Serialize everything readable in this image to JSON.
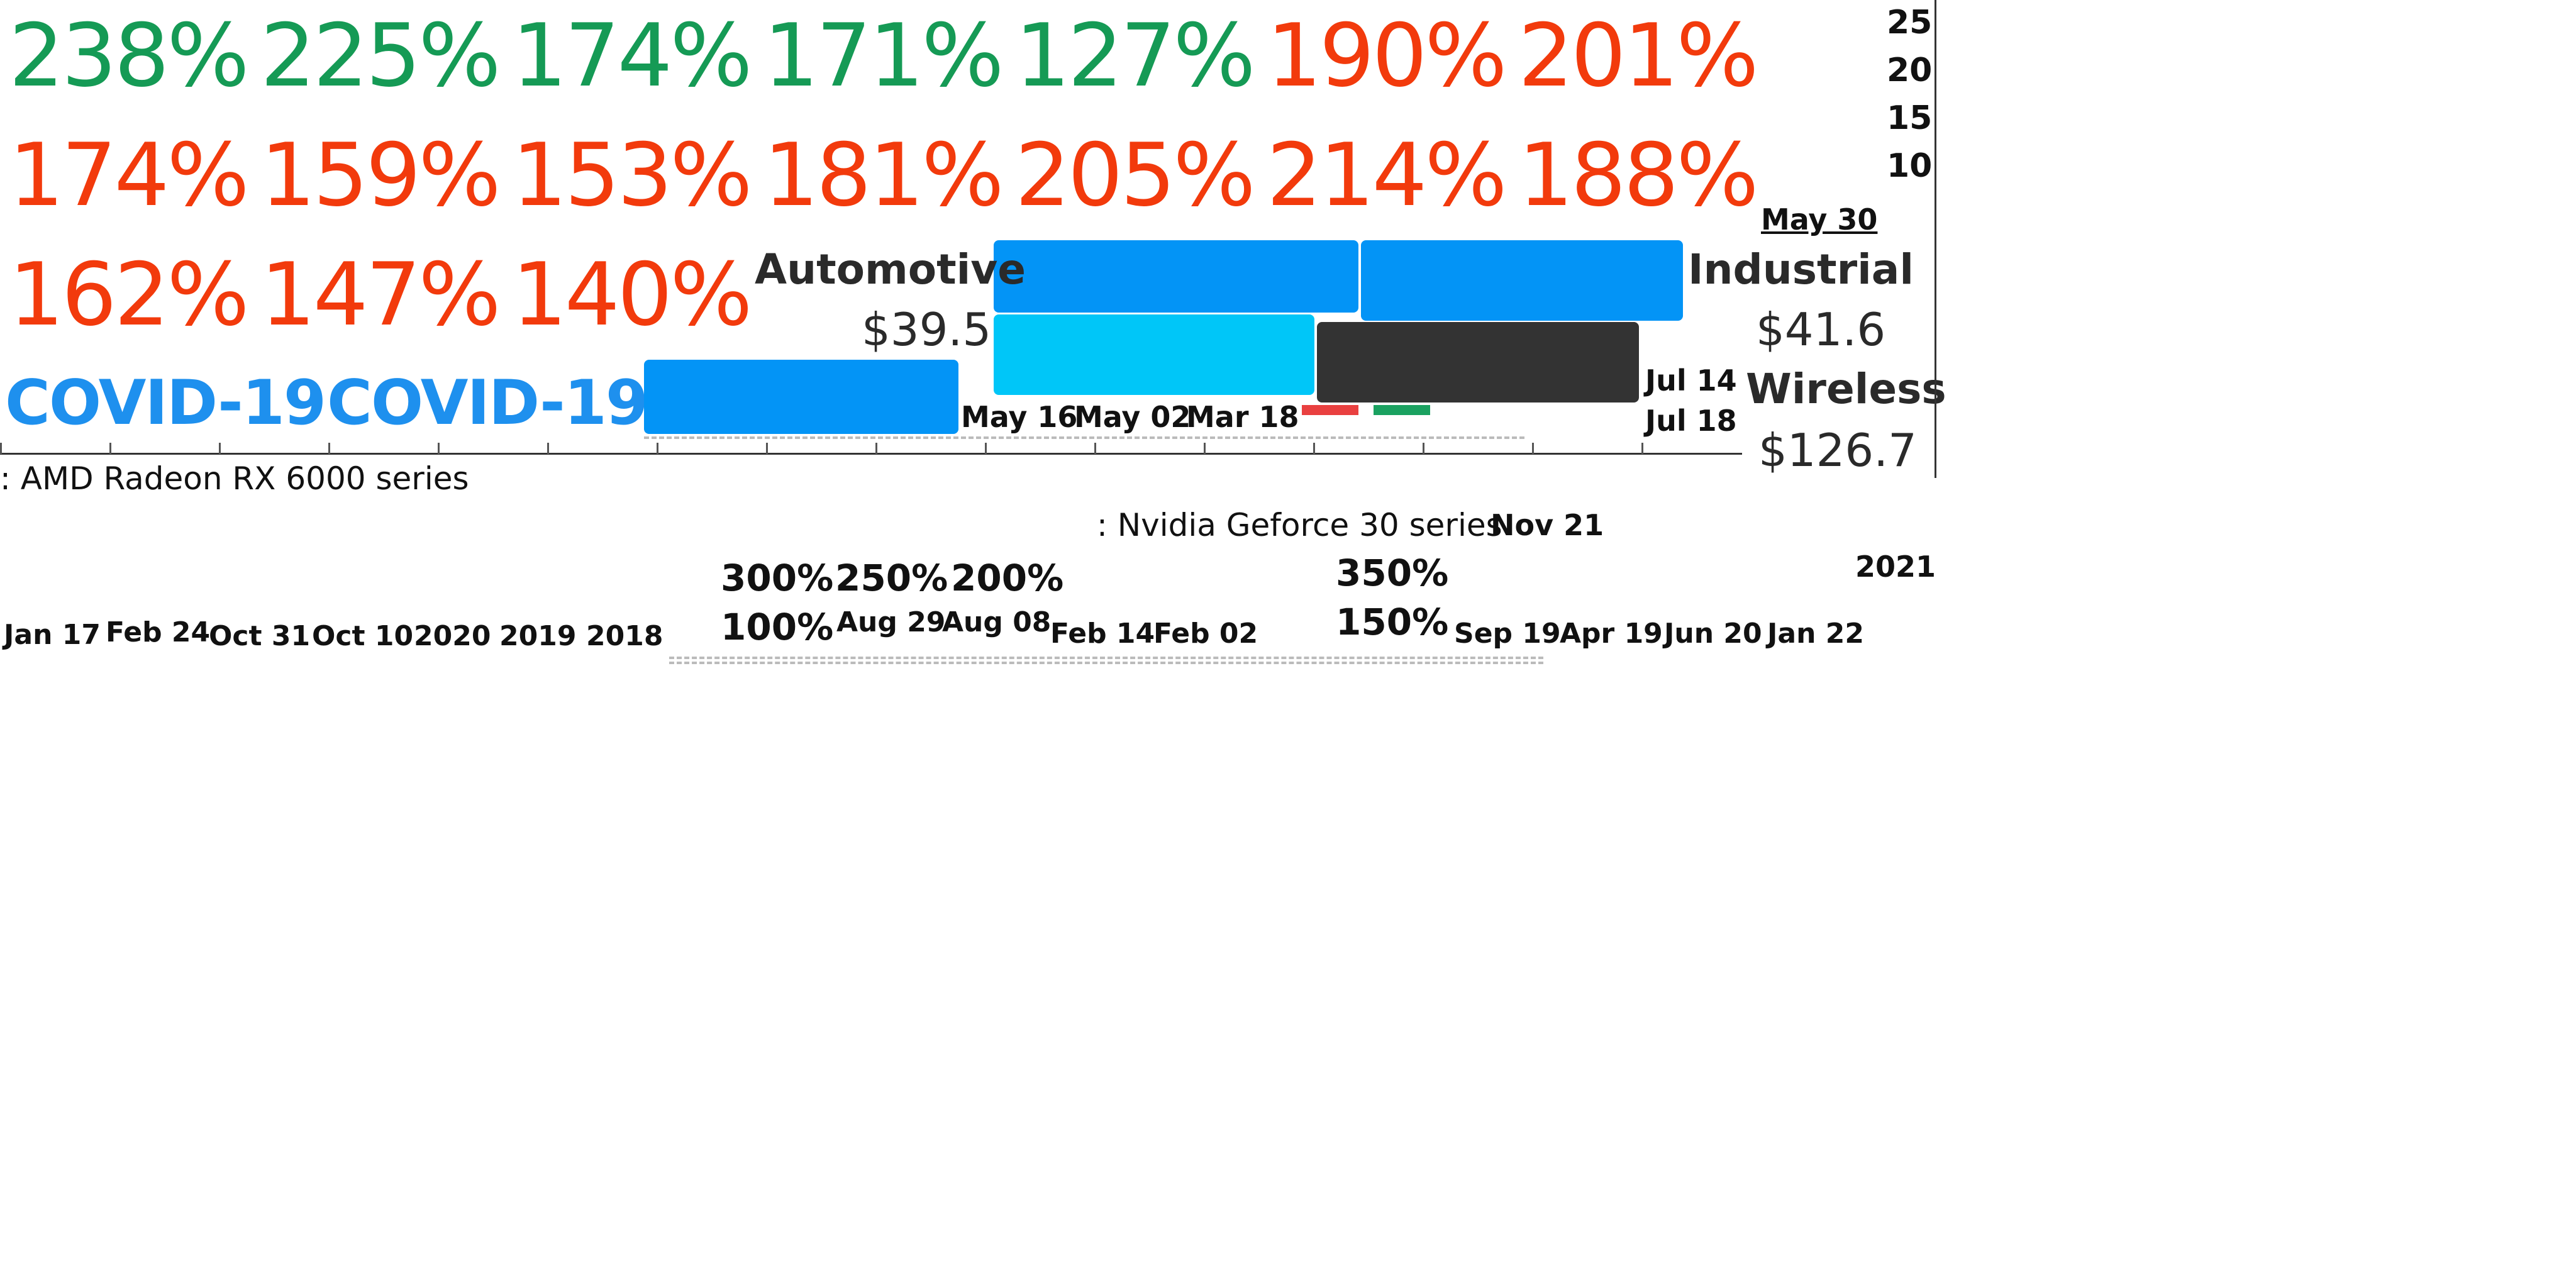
{
  "colors": {
    "green": "#159a55",
    "red": "#f23a0c",
    "blue": "#0394f6",
    "cyan": "#00c6f8",
    "dark": "#333333",
    "legend_red": "#e94040",
    "legend_green": "#1aa160"
  },
  "chart_data": {
    "type": "bar",
    "percent_grid": {
      "rows": [
        [
          "238%",
          "225%",
          "174%",
          "171%",
          "127%",
          "190%",
          "201%"
        ],
        [
          "174%",
          "159%",
          "153%",
          "181%",
          "205%",
          "214%",
          "188%"
        ],
        [
          "162%",
          "147%",
          "140%"
        ]
      ],
      "row_colors": [
        [
          "green",
          "green",
          "green",
          "green",
          "green",
          "red",
          "red"
        ],
        [
          "red",
          "red",
          "red",
          "red",
          "red",
          "red",
          "red"
        ],
        [
          "red",
          "red",
          "red"
        ]
      ]
    },
    "events": [
      "COVID-19",
      "COVID-19"
    ],
    "segments": [
      {
        "name": "Automotive",
        "value": "$39.5"
      },
      {
        "name": "Industrial",
        "value": "$41.6"
      },
      {
        "name": "Wireless",
        "value": "$126.7"
      }
    ],
    "y_ticks": [
      "25",
      "20",
      "15",
      "10"
    ],
    "upper_dates": [
      "May 30",
      "May 16",
      "May 02",
      "Mar 18",
      "Jul 14",
      "Jul 18"
    ],
    "legend": [
      {
        "name": ": AMD Radeon RX 6000 series"
      },
      {
        "name": ": Nvidia Geforce 30 series"
      }
    ],
    "lower_dates": [
      "Nov 21",
      "2021"
    ],
    "mid_percents": [
      "300%",
      "250%",
      "200%",
      "100%",
      "350%",
      "150%"
    ],
    "bottom_dates": [
      "Jan 17",
      "Feb 24",
      "Oct 31",
      "Oct 10",
      "2020",
      "2019",
      "2018",
      "Aug 29",
      "Aug 08",
      "Feb 14",
      "Feb 02",
      "Sep 19",
      "Apr 19",
      "Jun 20",
      "Jan 22"
    ]
  }
}
